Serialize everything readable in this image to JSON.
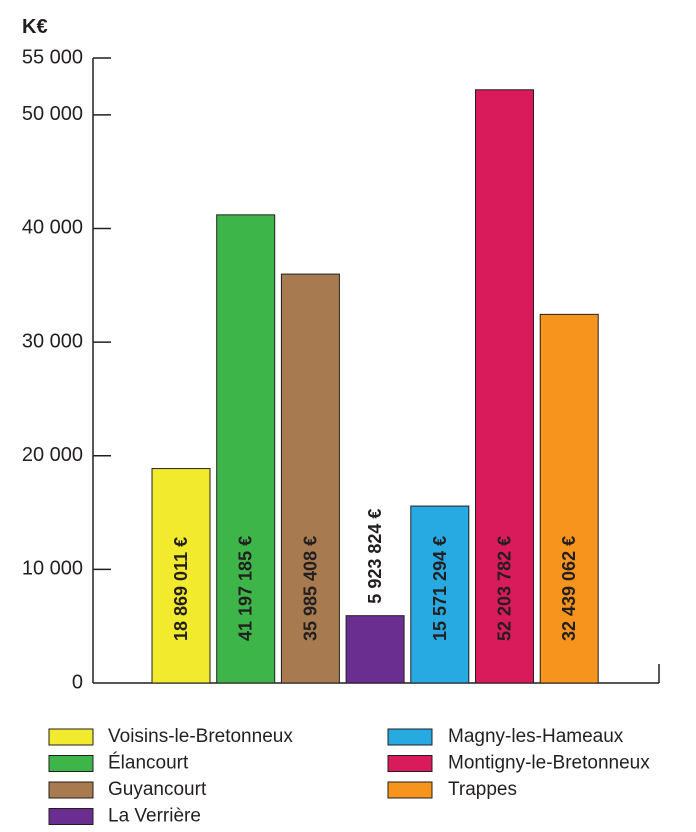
{
  "chart_data": {
    "type": "bar",
    "unit_label": "K€",
    "ylim": [
      0,
      55000
    ],
    "yticks": [
      {
        "value": 0,
        "label": "0"
      },
      {
        "value": 10000,
        "label": "10 000"
      },
      {
        "value": 20000,
        "label": "20 000"
      },
      {
        "value": 30000,
        "label": "30 000"
      },
      {
        "value": 40000,
        "label": "40 000"
      },
      {
        "value": 50000,
        "label": "50 000"
      },
      {
        "value": 55000,
        "label": "55 000"
      }
    ],
    "grid": false,
    "legend_position": "bottom",
    "bars": [
      {
        "category": "Voisins-le-Bretonneux",
        "value": 18869,
        "label": "18 869 011 €",
        "color": "#f2ea2d"
      },
      {
        "category": "Élancourt",
        "value": 41197,
        "label": "41 197 185 €",
        "color": "#3db549"
      },
      {
        "category": "Guyancourt",
        "value": 35985,
        "label": "35 985 408 €",
        "color": "#a77b4f"
      },
      {
        "category": "La Verrière",
        "value": 5924,
        "label": "5 923 824 €",
        "color": "#6a2e91"
      },
      {
        "category": "Magny-les-Hameaux",
        "value": 15571,
        "label": "15 571 294 €",
        "color": "#27aae1"
      },
      {
        "category": "Montigny-le-Bretonneux",
        "value": 52204,
        "label": "52 203 782 €",
        "color": "#d91a5b"
      },
      {
        "category": "Trappes",
        "value": 32439,
        "label": "32 439 062 €",
        "color": "#f7941d"
      }
    ]
  }
}
